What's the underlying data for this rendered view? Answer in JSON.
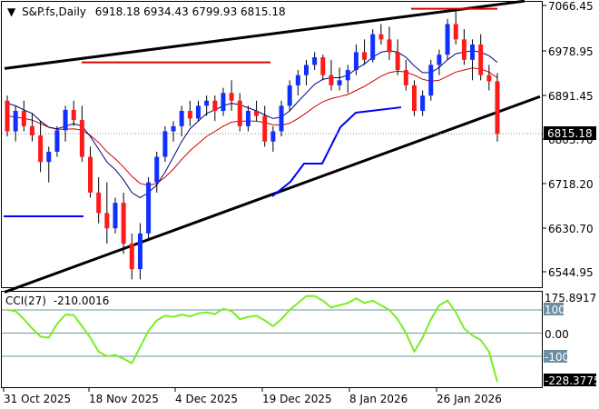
{
  "header": {
    "symbol": "S&P.fs,Daily",
    "ohlc": "6918.18 6934.43 6799.93 6815.18"
  },
  "price_axis": {
    "ticks": [
      "7066.45",
      "6978.95",
      "6891.45",
      "6803.70",
      "6718.20",
      "6630.70",
      "6544.95"
    ],
    "current_label": "6815.18"
  },
  "cci_panel": {
    "title": "CCI(27)",
    "value": "-210.0016",
    "ticks": [
      "175.8917",
      "100",
      "0.00",
      "-100",
      "-228.3775"
    ]
  },
  "time_axis": {
    "labels": [
      "31 Oct 2025",
      "18 Nov 2025",
      "4 Dec 2025",
      "19 Dec 2025",
      "8 Jan 2026",
      "26 Jan 2026"
    ]
  },
  "colors": {
    "bull": "#1030ff",
    "bear": "#ff1a1a",
    "ma_fast": "#000080",
    "ma_slow": "#cc0000",
    "support_line": "#0000ff",
    "resistance_line": "#dd0000",
    "trend": "#000000",
    "cci": "#77ee22",
    "level": "#6699aa"
  },
  "chart_data": {
    "type": "candlestick",
    "price_range": [
      6500,
      7080
    ],
    "cci_range": [
      -230,
      178
    ],
    "candles": [
      [
        6880,
        6890,
        6810,
        6820
      ],
      [
        6820,
        6870,
        6800,
        6860
      ],
      [
        6860,
        6880,
        6820,
        6830
      ],
      [
        6830,
        6855,
        6800,
        6812
      ],
      [
        6812,
        6840,
        6740,
        6760
      ],
      [
        6760,
        6790,
        6720,
        6780
      ],
      [
        6780,
        6830,
        6770,
        6822
      ],
      [
        6822,
        6870,
        6800,
        6862
      ],
      [
        6862,
        6880,
        6830,
        6842
      ],
      [
        6842,
        6870,
        6760,
        6770
      ],
      [
        6770,
        6790,
        6690,
        6700
      ],
      [
        6700,
        6730,
        6640,
        6660
      ],
      [
        6660,
        6720,
        6600,
        6630
      ],
      [
        6630,
        6690,
        6620,
        6680
      ],
      [
        6680,
        6700,
        6580,
        6600
      ],
      [
        6600,
        6620,
        6530,
        6550
      ],
      [
        6550,
        6640,
        6530,
        6620
      ],
      [
        6620,
        6730,
        6610,
        6720
      ],
      [
        6720,
        6780,
        6700,
        6770
      ],
      [
        6770,
        6830,
        6760,
        6820
      ],
      [
        6820,
        6840,
        6800,
        6830
      ],
      [
        6830,
        6870,
        6810,
        6860
      ],
      [
        6860,
        6880,
        6830,
        6845
      ],
      [
        6845,
        6880,
        6840,
        6870
      ],
      [
        6870,
        6890,
        6850,
        6880
      ],
      [
        6880,
        6890,
        6840,
        6860
      ],
      [
        6860,
        6905,
        6850,
        6895
      ],
      [
        6895,
        6920,
        6860,
        6880
      ],
      [
        6880,
        6895,
        6820,
        6830
      ],
      [
        6830,
        6870,
        6820,
        6860
      ],
      [
        6860,
        6880,
        6840,
        6850
      ],
      [
        6850,
        6870,
        6790,
        6800
      ],
      [
        6800,
        6830,
        6780,
        6820
      ],
      [
        6820,
        6880,
        6810,
        6870
      ],
      [
        6870,
        6920,
        6860,
        6910
      ],
      [
        6910,
        6940,
        6890,
        6930
      ],
      [
        6930,
        6960,
        6910,
        6950
      ],
      [
        6950,
        6975,
        6940,
        6965
      ],
      [
        6965,
        6970,
        6920,
        6930
      ],
      [
        6930,
        6960,
        6900,
        6910
      ],
      [
        6910,
        6945,
        6900,
        6920
      ],
      [
        6920,
        6950,
        6895,
        6940
      ],
      [
        6940,
        6990,
        6930,
        6975
      ],
      [
        6975,
        7000,
        6950,
        6960
      ],
      [
        6960,
        7020,
        6955,
        7010
      ],
      [
        7010,
        7030,
        6990,
        7000
      ],
      [
        7000,
        7025,
        6960,
        6975
      ],
      [
        6975,
        7000,
        6930,
        6940
      ],
      [
        6940,
        6960,
        6900,
        6910
      ],
      [
        6910,
        6920,
        6850,
        6860
      ],
      [
        6860,
        6900,
        6850,
        6890
      ],
      [
        6890,
        6960,
        6880,
        6950
      ],
      [
        6950,
        6980,
        6930,
        6970
      ],
      [
        6970,
        7040,
        6960,
        7030
      ],
      [
        7030,
        7060,
        6990,
        7000
      ],
      [
        7000,
        7020,
        6950,
        6960
      ],
      [
        6960,
        7000,
        6920,
        6990
      ],
      [
        6990,
        7010,
        6920,
        6930
      ],
      [
        6930,
        6950,
        6900,
        6918
      ],
      [
        6918,
        6934,
        6800,
        6815
      ]
    ],
    "ma_fast": [
      6875,
      6870,
      6862,
      6855,
      6840,
      6828,
      6825,
      6830,
      6835,
      6830,
      6810,
      6785,
      6760,
      6745,
      6725,
      6700,
      6690,
      6700,
      6715,
      6740,
      6770,
      6800,
      6825,
      6840,
      6855,
      6862,
      6870,
      6875,
      6872,
      6866,
      6860,
      6852,
      6845,
      6848,
      6860,
      6878,
      6895,
      6912,
      6922,
      6925,
      6925,
      6930,
      6942,
      6952,
      6965,
      6975,
      6978,
      6975,
      6965,
      6948,
      6935,
      6935,
      6945,
      6960,
      6972,
      6975,
      6978,
      6975,
      6968,
      6955
    ],
    "ma_slow": [
      6850,
      6848,
      6845,
      6842,
      6835,
      6828,
      6824,
      6824,
      6825,
      6822,
      6812,
      6798,
      6780,
      6766,
      6750,
      6732,
      6718,
      6714,
      6718,
      6730,
      6746,
      6765,
      6782,
      6796,
      6810,
      6820,
      6830,
      6838,
      6840,
      6840,
      6840,
      6837,
      6833,
      6832,
      6836,
      6845,
      6856,
      6868,
      6878,
      6884,
      6888,
      6892,
      6900,
      6908,
      6918,
      6928,
      6935,
      6938,
      6936,
      6930,
      6922,
      6918,
      6920,
      6928,
      6936,
      6940,
      6944,
      6942,
      6936,
      6925
    ],
    "cci": [
      100,
      95,
      60,
      20,
      -15,
      -20,
      40,
      80,
      78,
      30,
      -20,
      -80,
      -100,
      -95,
      -110,
      -130,
      -60,
      10,
      55,
      75,
      70,
      80,
      72,
      85,
      90,
      82,
      105,
      95,
      60,
      70,
      75,
      55,
      30,
      60,
      100,
      130,
      160,
      160,
      140,
      110,
      120,
      130,
      150,
      130,
      140,
      120,
      100,
      60,
      0,
      -80,
      -20,
      60,
      120,
      140,
      90,
      20,
      -10,
      -30,
      -80,
      -210
    ],
    "cci_levels": [
      100,
      0,
      -100
    ],
    "support_line_x": [
      370,
      442
    ],
    "support_line_y": 6867,
    "resistance_lines": [
      {
        "x": [
          90,
          298
        ],
        "y": 6955
      },
      {
        "x": [
          453,
          548
        ],
        "y": 7060
      }
    ],
    "trendlines": [
      {
        "x": [
          5,
          578
        ],
        "y": [
          6943,
          7075
        ]
      },
      {
        "x": [
          5,
          595
        ],
        "y": [
          6505,
          6888
        ]
      }
    ]
  }
}
